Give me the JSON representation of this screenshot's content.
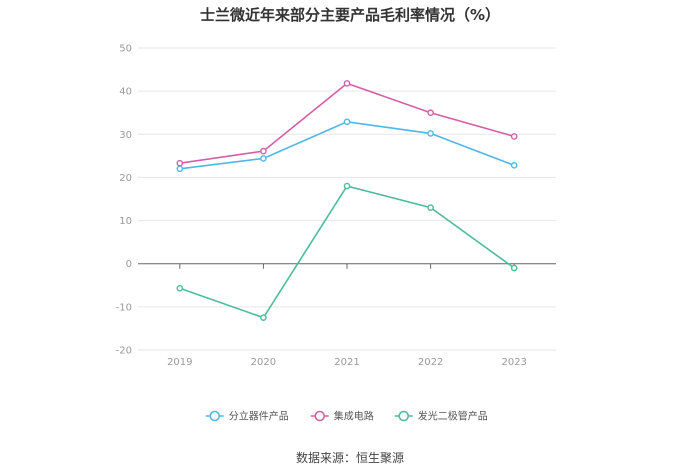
{
  "title": "士兰微近年来部分主要产品毛利率情况（%）",
  "source": "数据来源：恒生聚源",
  "chart_data": {
    "type": "line",
    "title": "士兰微近年来部分主要产品毛利率情况（%）",
    "categories": [
      "2019",
      "2020",
      "2021",
      "2022",
      "2023"
    ],
    "ylim": [
      -20,
      50
    ],
    "yticks": [
      50,
      40,
      30,
      20,
      10,
      0,
      -10,
      -20
    ],
    "grid": true,
    "legend_position": "bottom",
    "series": [
      {
        "name": "分立器件产品",
        "color": "#4db8e8",
        "values": [
          22.0,
          24.4,
          32.9,
          30.2,
          22.8
        ]
      },
      {
        "name": "集成电路",
        "color": "#d45fa8",
        "values": [
          23.3,
          26.1,
          41.8,
          35.0,
          29.5
        ]
      },
      {
        "name": "发光二极管产品",
        "color": "#4dbb9c",
        "values": [
          -5.7,
          -12.5,
          18.0,
          13.0,
          -1.0
        ]
      }
    ]
  }
}
